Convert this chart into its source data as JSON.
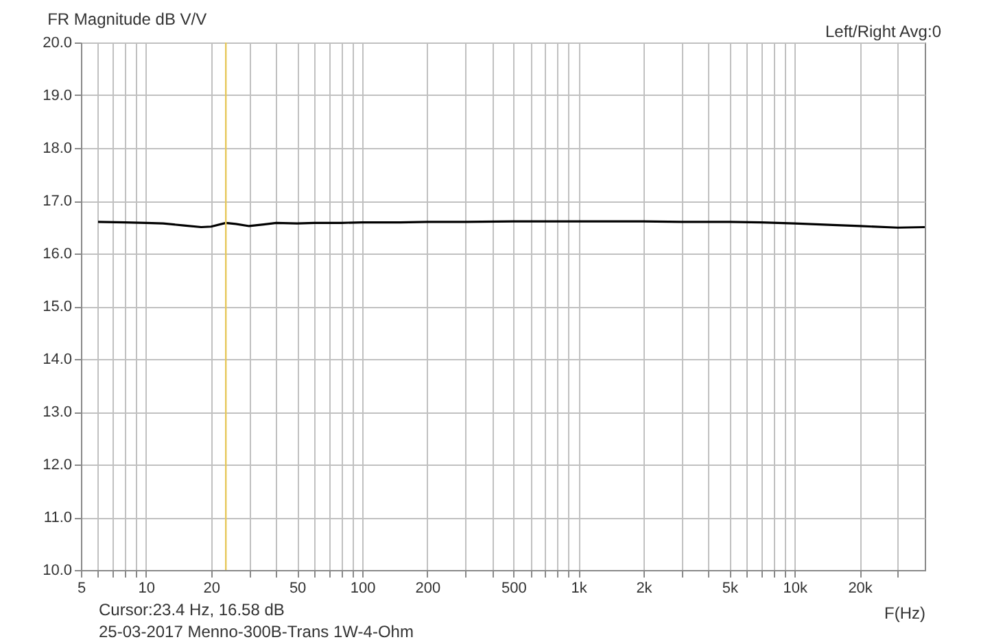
{
  "chart_data": {
    "type": "line",
    "title": "FR Magnitude dB V/V",
    "xlabel": "F(Hz)",
    "annotations": [
      "Left/Right  Avg:0",
      "Cursor:23.4 Hz, 16.58 dB",
      "25-03-2017 Menno-300B-Trans 1W-4-Ohm"
    ],
    "log": "x",
    "grid": true,
    "legend": false,
    "marker": "none",
    "line_style": "solid",
    "xlim": [
      5,
      40000
    ],
    "xticks": [
      5,
      {
        "value": 6,
        "label": null
      },
      {
        "value": 7,
        "label": null
      },
      {
        "value": 8,
        "label": null
      },
      {
        "value": 9,
        "label": null
      },
      10,
      20,
      {
        "value": 30,
        "label": null
      },
      {
        "value": 40,
        "label": null
      },
      50,
      {
        "value": 60,
        "label": null
      },
      {
        "value": 70,
        "label": null
      },
      {
        "value": 80,
        "label": null
      },
      {
        "value": 90,
        "label": null
      },
      100,
      200,
      {
        "value": 300,
        "label": null
      },
      {
        "value": 400,
        "label": null
      },
      500,
      {
        "value": 600,
        "label": null
      },
      {
        "value": 700,
        "label": null
      },
      {
        "value": 800,
        "label": null
      },
      {
        "value": 900,
        "label": null
      },
      {
        "value": 1000,
        "label": "1k"
      },
      {
        "value": 2000,
        "label": "2k"
      },
      {
        "value": 3000,
        "label": null
      },
      {
        "value": 4000,
        "label": null
      },
      {
        "value": 5000,
        "label": "5k"
      },
      {
        "value": 6000,
        "label": null
      },
      {
        "value": 7000,
        "label": null
      },
      {
        "value": 8000,
        "label": null
      },
      {
        "value": 9000,
        "label": null
      },
      {
        "value": 10000,
        "label": "10k"
      },
      {
        "value": 20000,
        "label": "20k"
      },
      {
        "value": 30000,
        "label": null
      }
    ],
    "ylim": [
      10,
      20
    ],
    "yticks": [
      {
        "value": 10,
        "label": "10.0"
      },
      {
        "value": 11,
        "label": "11.0"
      },
      {
        "value": 12,
        "label": "12.0"
      },
      {
        "value": 13,
        "label": "13.0"
      },
      {
        "value": 14,
        "label": "14.0"
      },
      {
        "value": 15,
        "label": "15.0"
      },
      {
        "value": 16,
        "label": "16.0"
      },
      {
        "value": 17,
        "label": "17.0"
      },
      {
        "value": 18,
        "label": "18.0"
      },
      {
        "value": 19,
        "label": "19.0"
      },
      {
        "value": 20,
        "label": "20.0"
      }
    ],
    "ref_lines": [
      {
        "axis": "x",
        "value": 23.4,
        "label": null,
        "color": "#e6c85a"
      }
    ],
    "series": [
      {
        "color": "#000000",
        "x": [
          6,
          8,
          10,
          12,
          15,
          18,
          20,
          23.4,
          26,
          30,
          35,
          40,
          50,
          60,
          80,
          100,
          150,
          200,
          300,
          500,
          700,
          1000,
          2000,
          3000,
          5000,
          7000,
          10000,
          15000,
          20000,
          30000,
          40000
        ],
        "values": [
          16.6,
          16.59,
          16.58,
          16.57,
          16.53,
          16.5,
          16.51,
          16.58,
          16.56,
          16.52,
          16.55,
          16.58,
          16.57,
          16.58,
          16.58,
          16.59,
          16.59,
          16.6,
          16.6,
          16.61,
          16.61,
          16.61,
          16.61,
          16.6,
          16.6,
          16.59,
          16.57,
          16.54,
          16.52,
          16.49,
          16.5
        ]
      }
    ]
  }
}
